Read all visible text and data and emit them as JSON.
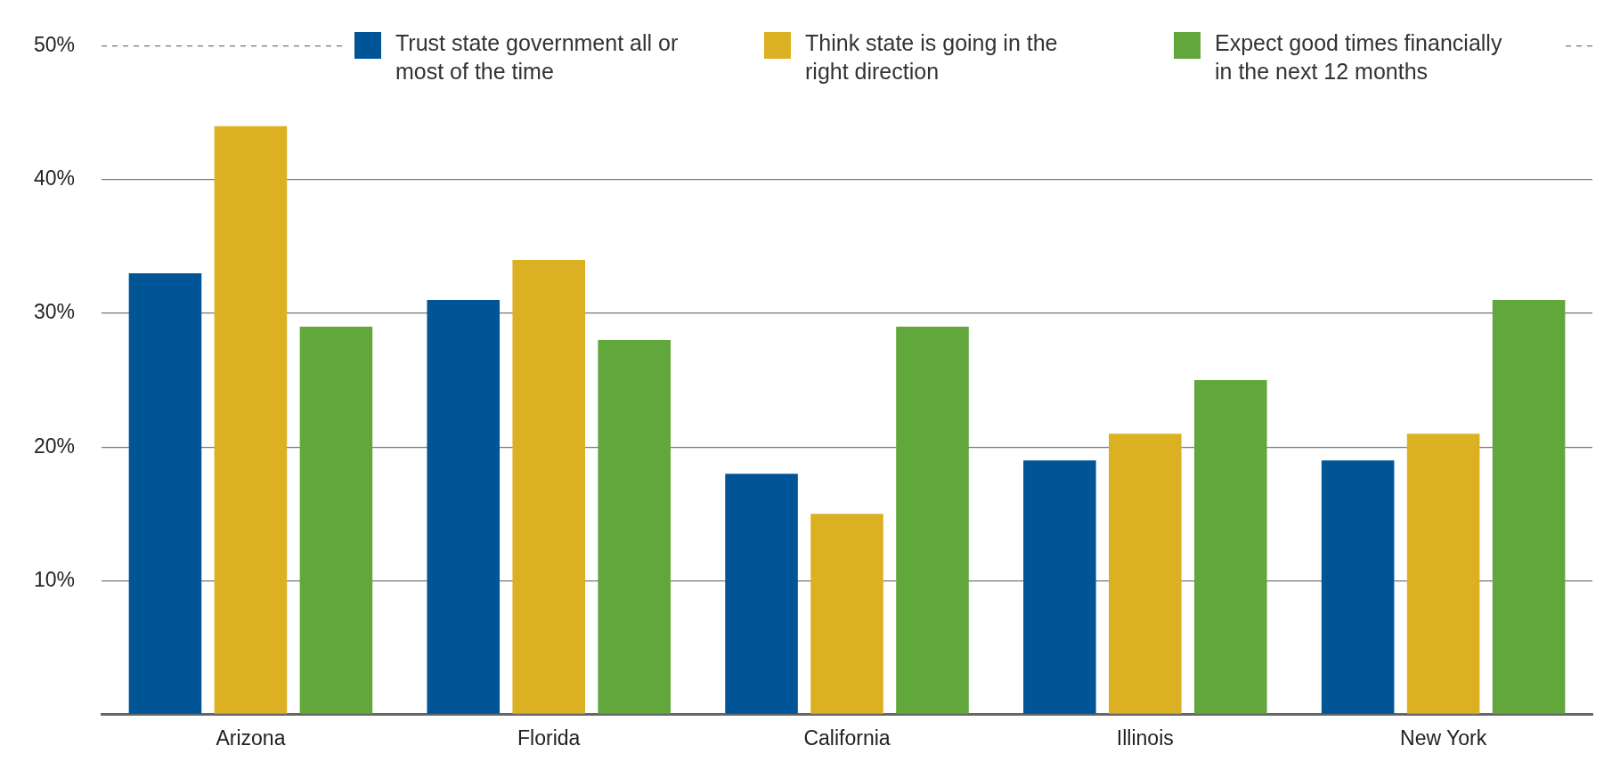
{
  "chart_data": {
    "type": "bar",
    "categories": [
      "Arizona",
      "Florida",
      "California",
      "Illinois",
      "New York"
    ],
    "series": [
      {
        "name": "Trust state government all or most of the time",
        "color": "#005596",
        "values": [
          33,
          31,
          18,
          19,
          19
        ]
      },
      {
        "name": "Think state is going in the right direction",
        "color": "#dbb022",
        "values": [
          44,
          34,
          15,
          21,
          21
        ]
      },
      {
        "name": "Expect good times financially in the next 12 months",
        "color": "#62a73b",
        "values": [
          29,
          28,
          29,
          25,
          31
        ]
      }
    ],
    "ylim": [
      0,
      50
    ],
    "yticks": [
      {
        "value": 0,
        "label": null
      },
      {
        "value": 10,
        "label": "10%"
      },
      {
        "value": 20,
        "label": "20%"
      },
      {
        "value": 30,
        "label": "30%"
      },
      {
        "value": 40,
        "label": "40%"
      },
      {
        "value": 50,
        "label": "50%"
      }
    ],
    "grid": "y",
    "legend": "top"
  }
}
